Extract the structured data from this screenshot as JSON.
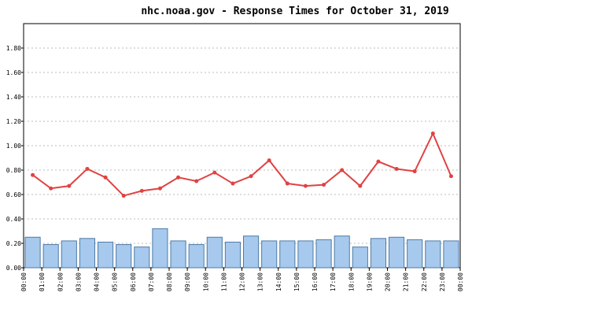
{
  "chart_data": {
    "type": "bar_line",
    "title": "nhc.noaa.gov - Response Times for October 31, 2019",
    "x_labels": [
      "00:00",
      "01:00",
      "02:00",
      "03:00",
      "04:00",
      "05:00",
      "06:00",
      "07:00",
      "08:00",
      "09:00",
      "10:00",
      "11:00",
      "12:00",
      "13:00",
      "14:00",
      "15:00",
      "16:00",
      "17:00",
      "18:00",
      "19:00",
      "20:00",
      "21:00",
      "22:00",
      "23:00",
      "00:00"
    ],
    "series": [
      {
        "kind": "bar",
        "color": "#a6c9ed",
        "values": [
          0.25,
          0.19,
          0.22,
          0.24,
          0.21,
          0.19,
          0.17,
          0.32,
          0.22,
          0.19,
          0.25,
          0.21,
          0.26,
          0.22,
          0.22,
          0.22,
          0.23,
          0.26,
          0.17,
          0.24,
          0.25,
          0.23,
          0.22,
          0.22
        ]
      },
      {
        "kind": "line",
        "color": "#e04242",
        "values": [
          0.76,
          0.65,
          0.67,
          0.81,
          0.74,
          0.59,
          0.63,
          0.65,
          0.74,
          0.71,
          0.78,
          0.69,
          0.75,
          0.88,
          0.69,
          0.67,
          0.68,
          0.8,
          0.67,
          0.87,
          0.81,
          0.79,
          1.1,
          0.75
        ]
      }
    ],
    "ylim": [
      0,
      2.0
    ],
    "yticks": [
      {
        "value": 0,
        "label": "0.00"
      },
      {
        "value": 0.2,
        "label": "0.20"
      },
      {
        "value": 0.4,
        "label": "0.40"
      },
      {
        "value": 0.6,
        "label": "0.60"
      },
      {
        "value": 0.8,
        "label": "0.80"
      },
      {
        "value": 1.0,
        "label": "1.00"
      },
      {
        "value": 1.2,
        "label": "1.20"
      },
      {
        "value": 1.4,
        "label": "1.40"
      },
      {
        "value": 1.6,
        "label": "1.60"
      },
      {
        "value": 1.8,
        "label": "1.80"
      }
    ],
    "grid": true
  }
}
